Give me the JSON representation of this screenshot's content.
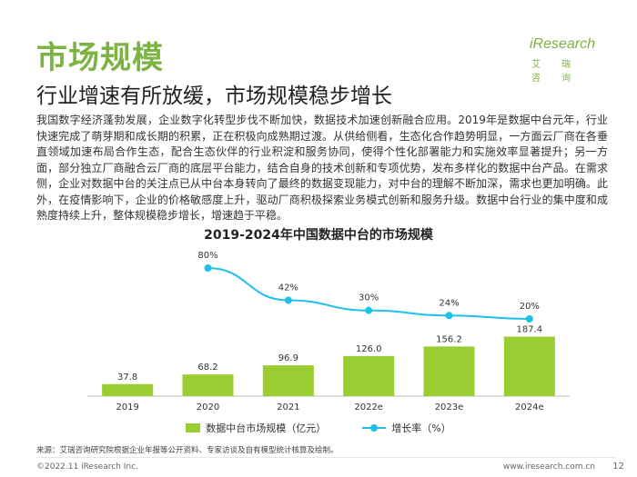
{
  "header": {
    "title": "市场规模",
    "subtitle": "行业增速有所放缓，市场规模稳步增长"
  },
  "logo": {
    "name": "iResearch",
    "sub": "艾 瑞 咨 询"
  },
  "body_text": "我国数字经济蓬勃发展，企业数字化转型步伐不断加快，数据技术加速创新融合应用。2019年是数据中台元年，行业快速完成了萌芽期和成长期的积累，正在积极向成熟期过渡。从供给侧看，生态化合作趋势明显，一方面云厂商在各垂直领域加速布局合作生态，配合生态伙伴的行业积淀和服务协同，使得个性化部署能力和实施效率显著提升；另一方面，部分独立厂商融合云厂商的底层平台能力，结合自身的技术创新和专项优势，发布多样化的数据中台产品。在需求侧，企业对数据中台的关注点已从中台本身转向了最终的数据变现能力，对中台的理解不断加深，需求也更加明确。此外，在疫情影响下，企业的价格敏感度上升，驱动厂商积极探索业务模式创新和服务升级。数据中台行业的集中度和成熟度持续上升，整体规模稳步增长，增速趋于平稳。",
  "chart_data": {
    "type": "bar",
    "title": "2019-2024年中国数据中台的市场规模",
    "categories": [
      "2019",
      "2020",
      "2021",
      "2022e",
      "2023e",
      "2024e"
    ],
    "series": [
      {
        "name": "数据中台市场规模（亿元）",
        "type": "bar",
        "values": [
          37.8,
          68.2,
          96.9,
          126.0,
          156.2,
          187.4
        ],
        "labels": [
          "37.8",
          "68.2",
          "96.9",
          "126.0",
          "156.2",
          "187.4"
        ],
        "color": "#9acd32"
      },
      {
        "name": "增长率（%）",
        "type": "line",
        "values": [
          null,
          80,
          42,
          30,
          24,
          20
        ],
        "labels": [
          null,
          "80%",
          "42%",
          "30%",
          "24%",
          "20%"
        ],
        "color": "#1ec0e8"
      }
    ],
    "bar_ylim": [
      0,
      200
    ],
    "line_ylim": [
      0,
      100
    ],
    "legend_position": "bottom",
    "grid": false
  },
  "source": "来源：艾瑞咨询研究院根据企业年报等公开资料、专家访谈及自有模型统计核算及绘制。",
  "footer": {
    "copyright": "©2022.11 iResearch Inc.",
    "website": "www.iresearch.com.cn",
    "page": "12"
  },
  "colors": {
    "accent": "#7cb342",
    "bar": "#9acd32",
    "line": "#1ec0e8"
  }
}
